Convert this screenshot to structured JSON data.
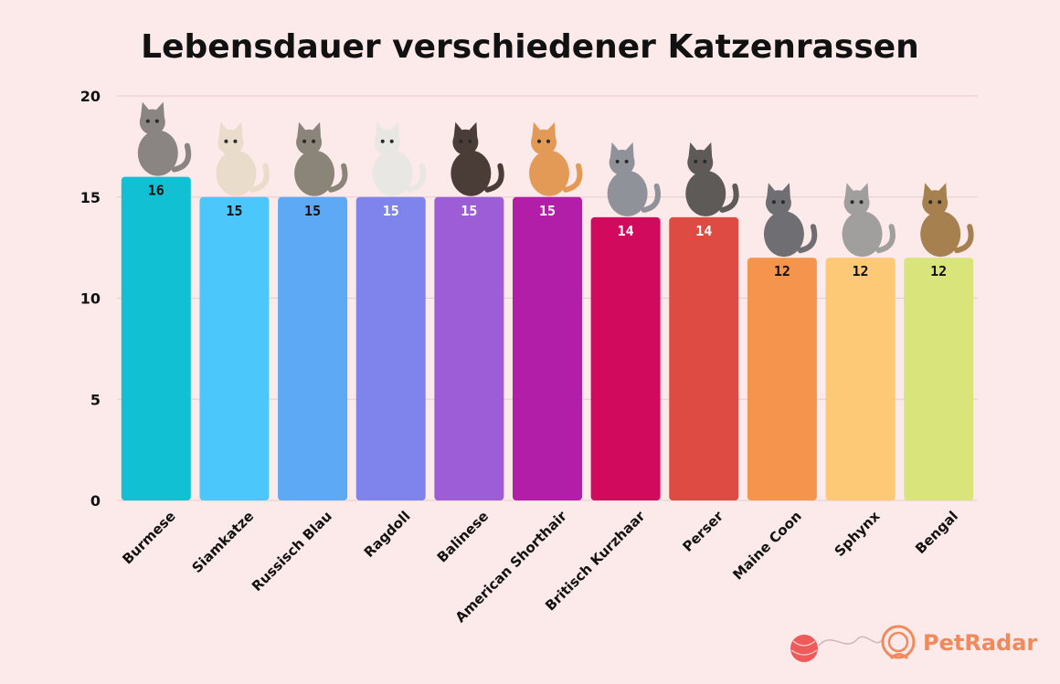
{
  "chart_data": {
    "type": "bar",
    "title": "Lebensdauer verschiedener Katzenrassen",
    "xlabel": "",
    "ylabel": "",
    "ylim": [
      0,
      20
    ],
    "yticks": [
      0,
      5,
      10,
      15,
      20
    ],
    "grid": true,
    "legend": "none",
    "categories": [
      "Burmese",
      "Siamkatze",
      "Russisch Blau",
      "Ragdoll",
      "Balinese",
      "American Shorthair",
      "Britisch Kurzhaar",
      "Perser",
      "Maine Coon",
      "Sphynx",
      "Bengal"
    ],
    "values": [
      16,
      15,
      15,
      15,
      15,
      15,
      14,
      14,
      12,
      12,
      12
    ],
    "data_labels": [
      "16",
      "15",
      "15",
      "15",
      "15",
      "15",
      "14",
      "14",
      "12",
      "12",
      "12"
    ],
    "colors": [
      "#11c0d2",
      "#4cc7fb",
      "#5ea9f5",
      "#7e84ec",
      "#9c5dd6",
      "#b31ea8",
      "#d10a5e",
      "#dd4b42",
      "#f5954d",
      "#fdc976",
      "#d9e57a"
    ],
    "label_colors": [
      "#111111",
      "#111111",
      "#111111",
      "#ffffff",
      "#ffffff",
      "#ffffff",
      "#ffffff",
      "#ffffff",
      "#111111",
      "#111111",
      "#111111"
    ],
    "cat_icons": [
      "cat-burmese-icon",
      "cat-siamkatze-icon",
      "cat-russisch-blau-icon",
      "cat-ragdoll-icon",
      "cat-balinese-icon",
      "cat-american-shorthair-icon",
      "cat-britisch-kurzhaar-icon",
      "cat-perser-icon",
      "cat-maine-coon-icon",
      "cat-sphynx-icon",
      "cat-bengal-icon"
    ],
    "cat_colors": [
      "#8a8482",
      "#e9dccb",
      "#8a8479",
      "#e9e7e3",
      "#4a3c36",
      "#e49a57",
      "#8f9399",
      "#5d5a58",
      "#6f6f73",
      "#a09f9d",
      "#a6804f"
    ]
  },
  "brand": {
    "name": "PetRadar",
    "color": "#f08a5d",
    "yarn_color": "#ef5a5a",
    "logo_icon": "petradar-logo-icon",
    "yarn_icon": "yarn-ball-icon"
  }
}
